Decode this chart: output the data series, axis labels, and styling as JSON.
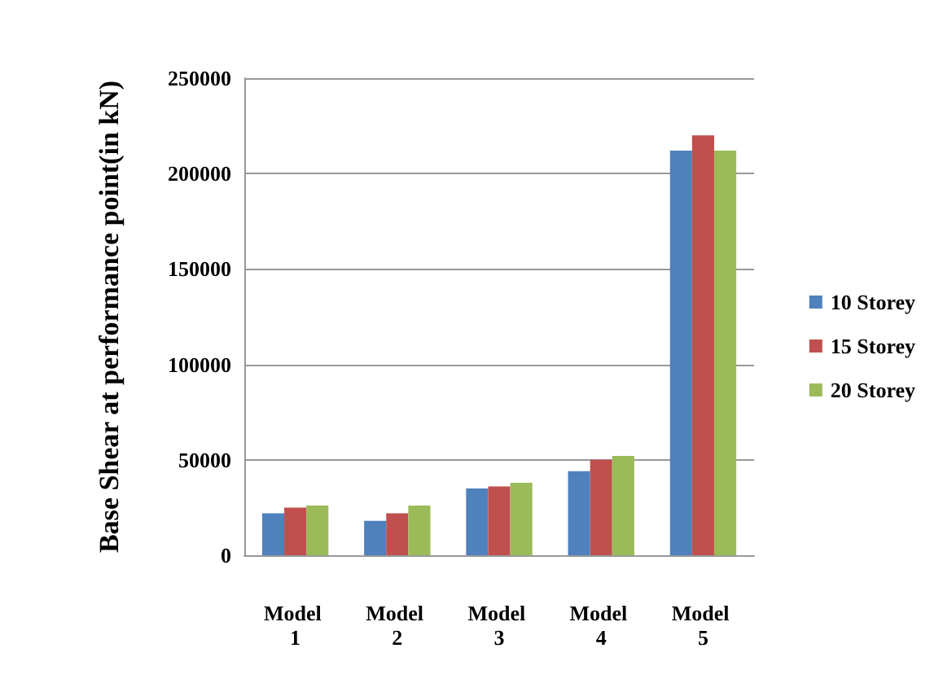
{
  "chart_data": {
    "type": "bar",
    "ylabel": "Base Shear at performance point(in kN)",
    "categories": [
      "Model 1",
      "Model 2",
      "Model 3",
      "Model 4",
      "Model 5"
    ],
    "series": [
      {
        "name": "10 Storey",
        "color": "#4f81bd",
        "values": [
          22000,
          18000,
          35000,
          44000,
          212000
        ]
      },
      {
        "name": "15 Storey",
        "color": "#c0504d",
        "values": [
          25000,
          22000,
          36000,
          50000,
          220000
        ]
      },
      {
        "name": "20 Storey",
        "color": "#9bbb59",
        "values": [
          26000,
          26000,
          38000,
          52000,
          212000
        ]
      }
    ],
    "ylim": [
      0,
      250000
    ],
    "yticks": [
      0,
      50000,
      100000,
      150000,
      200000,
      250000
    ],
    "grid": "y",
    "legend": "right"
  }
}
